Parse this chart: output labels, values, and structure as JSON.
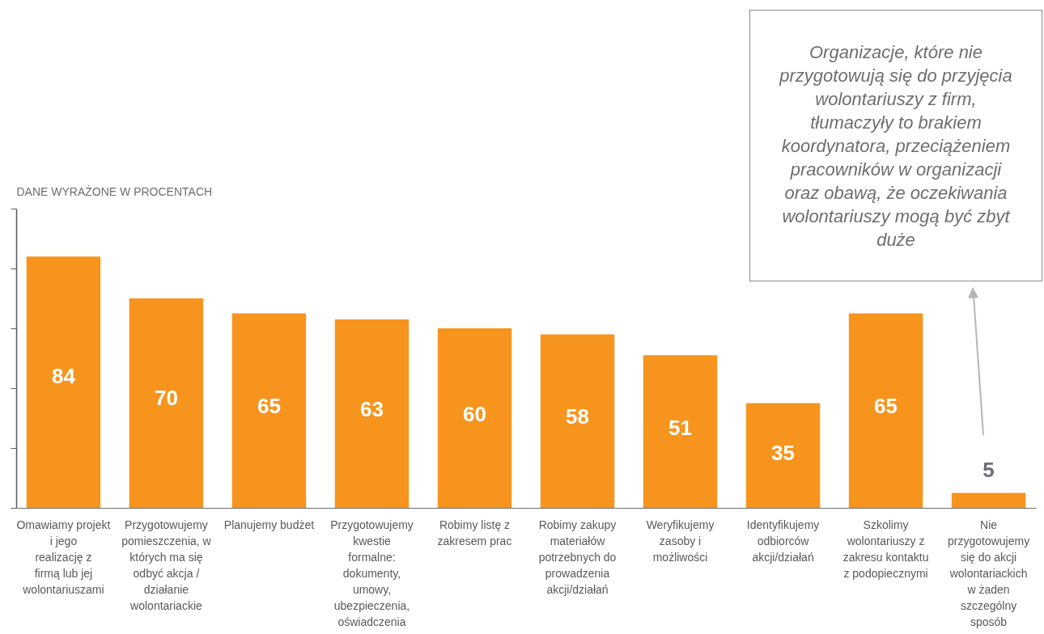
{
  "chart_data": {
    "type": "bar",
    "ylabel": "DANE WYRAŻONE W PROCENTACH",
    "categories": [
      "Omawiamy projekt i jego realizację z firmą lub jej wolontariuszami",
      "Przygotowujemy pomieszczenia, w których ma się odbyć akcja / działanie wolontariackie",
      "Planujemy budżet",
      "Przygotowujemy kwestie formalne: dokumenty, umowy, ubezpieczenia, oświadczenia",
      "Robimy listę z zakresem prac",
      "Robimy zakupy materiałów potrzebnych do prowadzenia akcji/działań",
      "Weryfikujemy zasoby i możliwości",
      "Identyfikujemy odbiorców akcji/działań",
      "Szkolimy wolontariuszy z zakresu kontaktu z podopiecznymi",
      "Nie przygotowujemy się do akcji wolontariackich w żaden szczególny sposób"
    ],
    "values": [
      84,
      70,
      65,
      63,
      60,
      58,
      51,
      35,
      65,
      5
    ],
    "color": "#f7941d",
    "data_labels": true,
    "ylim": [
      0,
      100
    ],
    "yticks": [
      {
        "value": 0,
        "label": null
      },
      {
        "value": 20,
        "label": null
      },
      {
        "value": 40,
        "label": null
      },
      {
        "value": 60,
        "label": null
      },
      {
        "value": 80,
        "label": null
      },
      {
        "value": 100,
        "label": null
      }
    ],
    "tick_labels": "x",
    "annotations": [
      "Organizacje, które nie przygotowują się do przyjęcia wolontariuszy z firm, tłumaczyły to brakiem koordynatora, przeciążeniem pracowników w organizacji oraz obawą, że oczekiwania wolontariuszy mogą być zbyt duże"
    ]
  }
}
